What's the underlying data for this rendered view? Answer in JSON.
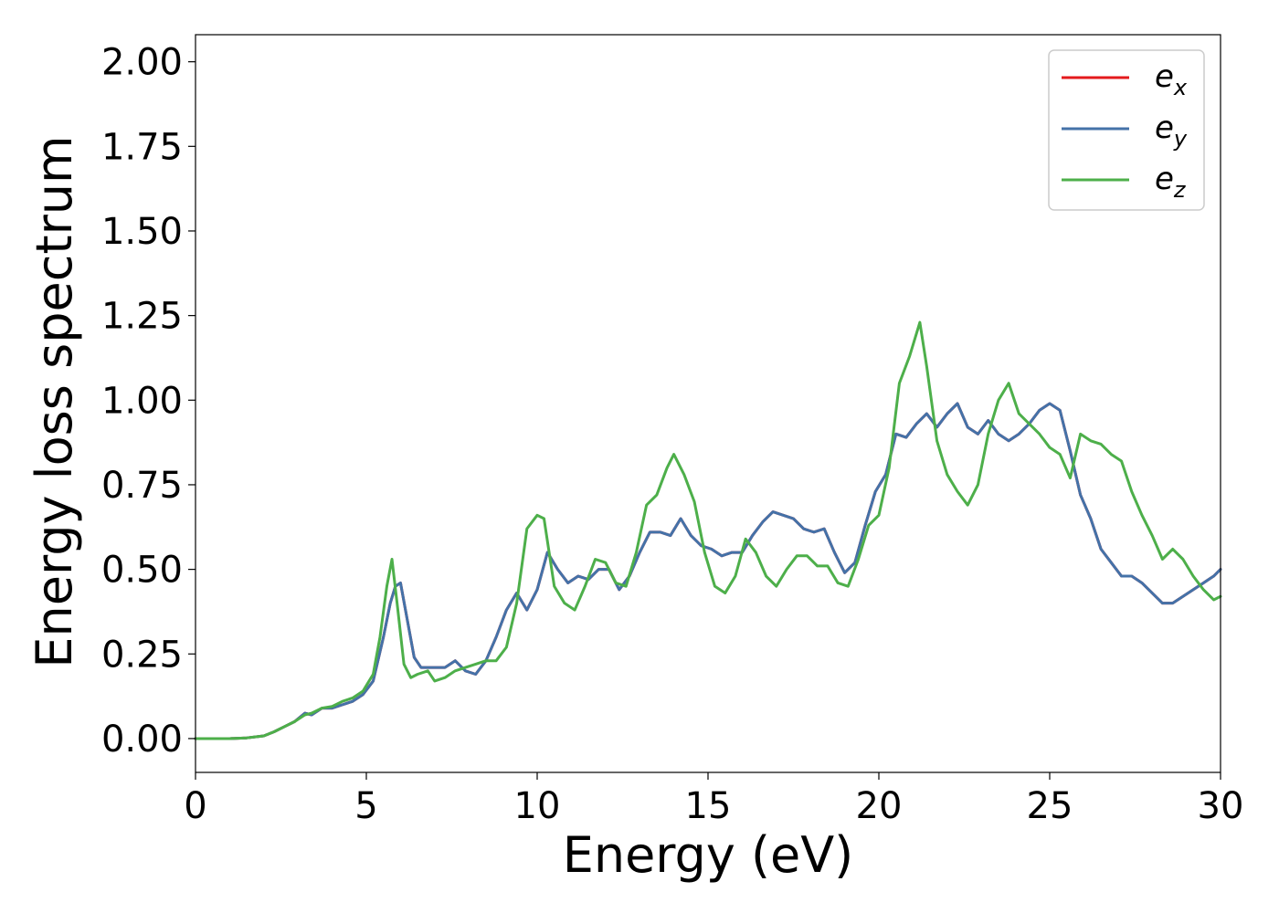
{
  "chart_data": {
    "type": "line",
    "title": "",
    "xlabel": "Energy (eV)",
    "ylabel": "Energy loss spectrum",
    "xlim": [
      0,
      30
    ],
    "ylim": [
      -0.1,
      2.08
    ],
    "xticks": [
      0,
      5,
      10,
      15,
      20,
      25,
      30
    ],
    "yticks": [
      0.0,
      0.25,
      0.5,
      0.75,
      1.0,
      1.25,
      1.5,
      1.75,
      2.0
    ],
    "xtick_labels": [
      "0",
      "5",
      "10",
      "15",
      "20",
      "25",
      "30"
    ],
    "ytick_labels": [
      "0.00",
      "0.25",
      "0.50",
      "0.75",
      "1.00",
      "1.25",
      "1.50",
      "1.75",
      "2.00"
    ],
    "grid": false,
    "legend_position": "top-right",
    "series": [
      {
        "name": "e",
        "subscript": "x",
        "color": "#e41a1c",
        "x": [
          0,
          1,
          1.5,
          2,
          2.3,
          2.6,
          2.9,
          3.2,
          3.4,
          3.7,
          4.0,
          4.3,
          4.6,
          4.9,
          5.2,
          5.5,
          5.7,
          5.85,
          6.0,
          6.2,
          6.4,
          6.6,
          6.8,
          7.0,
          7.3,
          7.6,
          7.9,
          8.2,
          8.5,
          8.8,
          9.1,
          9.4,
          9.7,
          10.0,
          10.3,
          10.6,
          10.9,
          11.2,
          11.5,
          11.8,
          12.1,
          12.4,
          12.7,
          13.0,
          13.3,
          13.6,
          13.9,
          14.2,
          14.5,
          14.8,
          15.1,
          15.4,
          15.7,
          16.0,
          16.3,
          16.6,
          16.9,
          17.2,
          17.5,
          17.8,
          18.1,
          18.4,
          18.7,
          19.0,
          19.3,
          19.6,
          19.9,
          20.2,
          20.5,
          20.8,
          21.1,
          21.4,
          21.7,
          22.0,
          22.3,
          22.6,
          22.9,
          23.2,
          23.5,
          23.8,
          24.1,
          24.4,
          24.7,
          25.0,
          25.3,
          25.6,
          25.9,
          26.2,
          26.5,
          26.8,
          27.1,
          27.4,
          27.7,
          28.0,
          28.3,
          28.6,
          28.9,
          29.2,
          29.5,
          29.8,
          30.0
        ],
        "y": [
          0.0,
          0.0,
          0.002,
          0.008,
          0.02,
          0.035,
          0.05,
          0.075,
          0.07,
          0.09,
          0.09,
          0.1,
          0.11,
          0.13,
          0.17,
          0.3,
          0.4,
          0.45,
          0.46,
          0.35,
          0.24,
          0.21,
          0.21,
          0.21,
          0.21,
          0.23,
          0.2,
          0.19,
          0.23,
          0.3,
          0.38,
          0.43,
          0.38,
          0.44,
          0.55,
          0.5,
          0.46,
          0.48,
          0.47,
          0.5,
          0.5,
          0.44,
          0.48,
          0.55,
          0.61,
          0.61,
          0.6,
          0.65,
          0.6,
          0.57,
          0.56,
          0.54,
          0.55,
          0.55,
          0.6,
          0.64,
          0.67,
          0.66,
          0.65,
          0.62,
          0.61,
          0.62,
          0.55,
          0.49,
          0.52,
          0.63,
          0.73,
          0.78,
          0.9,
          0.89,
          0.93,
          0.96,
          0.92,
          0.96,
          0.99,
          0.92,
          0.9,
          0.94,
          0.9,
          0.88,
          0.9,
          0.93,
          0.97,
          0.99,
          0.97,
          0.85,
          0.72,
          0.65,
          0.56,
          0.52,
          0.48,
          0.48,
          0.46,
          0.43,
          0.4,
          0.4,
          0.42,
          0.44,
          0.46,
          0.48,
          0.5
        ]
      },
      {
        "name": "e",
        "subscript": "y",
        "color": "#4472a8",
        "x": [
          0,
          1,
          1.5,
          2,
          2.3,
          2.6,
          2.9,
          3.2,
          3.4,
          3.7,
          4.0,
          4.3,
          4.6,
          4.9,
          5.2,
          5.5,
          5.7,
          5.85,
          6.0,
          6.2,
          6.4,
          6.6,
          6.8,
          7.0,
          7.3,
          7.6,
          7.9,
          8.2,
          8.5,
          8.8,
          9.1,
          9.4,
          9.7,
          10.0,
          10.3,
          10.6,
          10.9,
          11.2,
          11.5,
          11.8,
          12.1,
          12.4,
          12.7,
          13.0,
          13.3,
          13.6,
          13.9,
          14.2,
          14.5,
          14.8,
          15.1,
          15.4,
          15.7,
          16.0,
          16.3,
          16.6,
          16.9,
          17.2,
          17.5,
          17.8,
          18.1,
          18.4,
          18.7,
          19.0,
          19.3,
          19.6,
          19.9,
          20.2,
          20.5,
          20.8,
          21.1,
          21.4,
          21.7,
          22.0,
          22.3,
          22.6,
          22.9,
          23.2,
          23.5,
          23.8,
          24.1,
          24.4,
          24.7,
          25.0,
          25.3,
          25.6,
          25.9,
          26.2,
          26.5,
          26.8,
          27.1,
          27.4,
          27.7,
          28.0,
          28.3,
          28.6,
          28.9,
          29.2,
          29.5,
          29.8,
          30.0
        ],
        "y": [
          0.0,
          0.0,
          0.002,
          0.008,
          0.02,
          0.035,
          0.05,
          0.075,
          0.07,
          0.09,
          0.09,
          0.1,
          0.11,
          0.13,
          0.17,
          0.3,
          0.4,
          0.45,
          0.46,
          0.35,
          0.24,
          0.21,
          0.21,
          0.21,
          0.21,
          0.23,
          0.2,
          0.19,
          0.23,
          0.3,
          0.38,
          0.43,
          0.38,
          0.44,
          0.55,
          0.5,
          0.46,
          0.48,
          0.47,
          0.5,
          0.5,
          0.44,
          0.48,
          0.55,
          0.61,
          0.61,
          0.6,
          0.65,
          0.6,
          0.57,
          0.56,
          0.54,
          0.55,
          0.55,
          0.6,
          0.64,
          0.67,
          0.66,
          0.65,
          0.62,
          0.61,
          0.62,
          0.55,
          0.49,
          0.52,
          0.63,
          0.73,
          0.78,
          0.9,
          0.89,
          0.93,
          0.96,
          0.92,
          0.96,
          0.99,
          0.92,
          0.9,
          0.94,
          0.9,
          0.88,
          0.9,
          0.93,
          0.97,
          0.99,
          0.97,
          0.85,
          0.72,
          0.65,
          0.56,
          0.52,
          0.48,
          0.48,
          0.46,
          0.43,
          0.4,
          0.4,
          0.42,
          0.44,
          0.46,
          0.48,
          0.5
        ]
      },
      {
        "name": "e",
        "subscript": "z",
        "color": "#4daf4a",
        "x": [
          0,
          1,
          1.5,
          2,
          2.3,
          2.6,
          2.9,
          3.2,
          3.4,
          3.7,
          4.0,
          4.3,
          4.6,
          4.9,
          5.2,
          5.4,
          5.6,
          5.75,
          5.9,
          6.1,
          6.3,
          6.5,
          6.8,
          7.0,
          7.3,
          7.6,
          7.9,
          8.2,
          8.5,
          8.8,
          9.1,
          9.4,
          9.7,
          10.0,
          10.2,
          10.5,
          10.8,
          11.1,
          11.4,
          11.7,
          12.0,
          12.3,
          12.6,
          12.9,
          13.2,
          13.5,
          13.8,
          14.0,
          14.3,
          14.6,
          14.9,
          15.2,
          15.5,
          15.8,
          16.1,
          16.4,
          16.7,
          17.0,
          17.3,
          17.6,
          17.9,
          18.2,
          18.5,
          18.8,
          19.1,
          19.4,
          19.7,
          20.0,
          20.3,
          20.6,
          20.9,
          21.2,
          21.4,
          21.7,
          22.0,
          22.3,
          22.6,
          22.9,
          23.2,
          23.5,
          23.8,
          24.1,
          24.4,
          24.7,
          25.0,
          25.3,
          25.6,
          25.9,
          26.2,
          26.5,
          26.8,
          27.1,
          27.4,
          27.7,
          28.0,
          28.3,
          28.6,
          28.9,
          29.2,
          29.5,
          29.8,
          30.0
        ],
        "y": [
          0.0,
          0.0,
          0.002,
          0.008,
          0.02,
          0.035,
          0.05,
          0.07,
          0.075,
          0.09,
          0.095,
          0.11,
          0.12,
          0.14,
          0.19,
          0.3,
          0.45,
          0.53,
          0.4,
          0.22,
          0.18,
          0.19,
          0.2,
          0.17,
          0.18,
          0.2,
          0.21,
          0.22,
          0.23,
          0.23,
          0.27,
          0.4,
          0.62,
          0.66,
          0.65,
          0.45,
          0.4,
          0.38,
          0.45,
          0.53,
          0.52,
          0.46,
          0.45,
          0.55,
          0.69,
          0.72,
          0.8,
          0.84,
          0.78,
          0.7,
          0.55,
          0.45,
          0.43,
          0.48,
          0.59,
          0.55,
          0.48,
          0.45,
          0.5,
          0.54,
          0.54,
          0.51,
          0.51,
          0.46,
          0.45,
          0.53,
          0.63,
          0.66,
          0.8,
          1.05,
          1.13,
          1.23,
          1.1,
          0.88,
          0.78,
          0.73,
          0.69,
          0.75,
          0.9,
          1.0,
          1.05,
          0.96,
          0.93,
          0.9,
          0.86,
          0.84,
          0.77,
          0.9,
          0.88,
          0.87,
          0.84,
          0.82,
          0.73,
          0.66,
          0.6,
          0.53,
          0.56,
          0.53,
          0.48,
          0.44,
          0.41,
          0.42
        ]
      }
    ]
  }
}
